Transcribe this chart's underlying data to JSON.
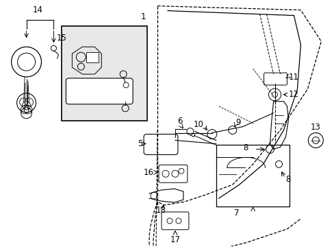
{
  "bg_color": "#ffffff",
  "fig_width": 4.89,
  "fig_height": 3.6,
  "dpi": 100,
  "line_color": "#000000",
  "box_fill": "#e0e0e0",
  "label_fontsize": 8.5
}
